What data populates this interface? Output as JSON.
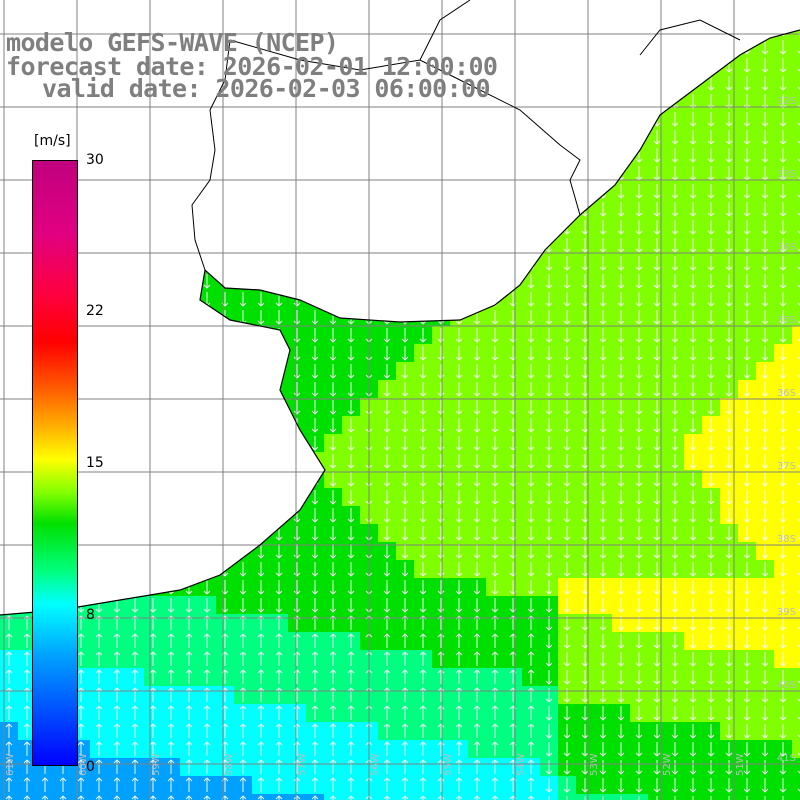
{
  "title": {
    "line1": "modelo GEFS-WAVE (NCEP)",
    "line2": "forecast date: 2026-02-01 12:00:00",
    "line3": "valid date: 2026-02-03 06:00:00"
  },
  "colorbar": {
    "unit": "[m/s]",
    "min": 0,
    "max": 30,
    "ticks": [
      "30",
      "22",
      "15",
      "8",
      "0"
    ],
    "colors": [
      "#0000ff",
      "#00a0ff",
      "#00ffff",
      "#00ff80",
      "#00e000",
      "#80ff00",
      "#ffff00",
      "#ffb000",
      "#ff6000",
      "#ff0000",
      "#ff0040",
      "#c0007f"
    ]
  },
  "lat_labels": [
    "32S",
    "33S",
    "34S",
    "35S",
    "36S",
    "37S",
    "38S",
    "39S",
    "40S",
    "41S"
  ],
  "lon_labels": [
    "61W",
    "60W",
    "59W",
    "58W",
    "57W",
    "56W",
    "55W",
    "54W",
    "53W",
    "52W",
    "51W"
  ],
  "colors": {
    "land": "#ffffff",
    "grid": "#808080",
    "coast": "#000000",
    "arrows": "#ffffff",
    "title": "#7f7f7f"
  }
}
